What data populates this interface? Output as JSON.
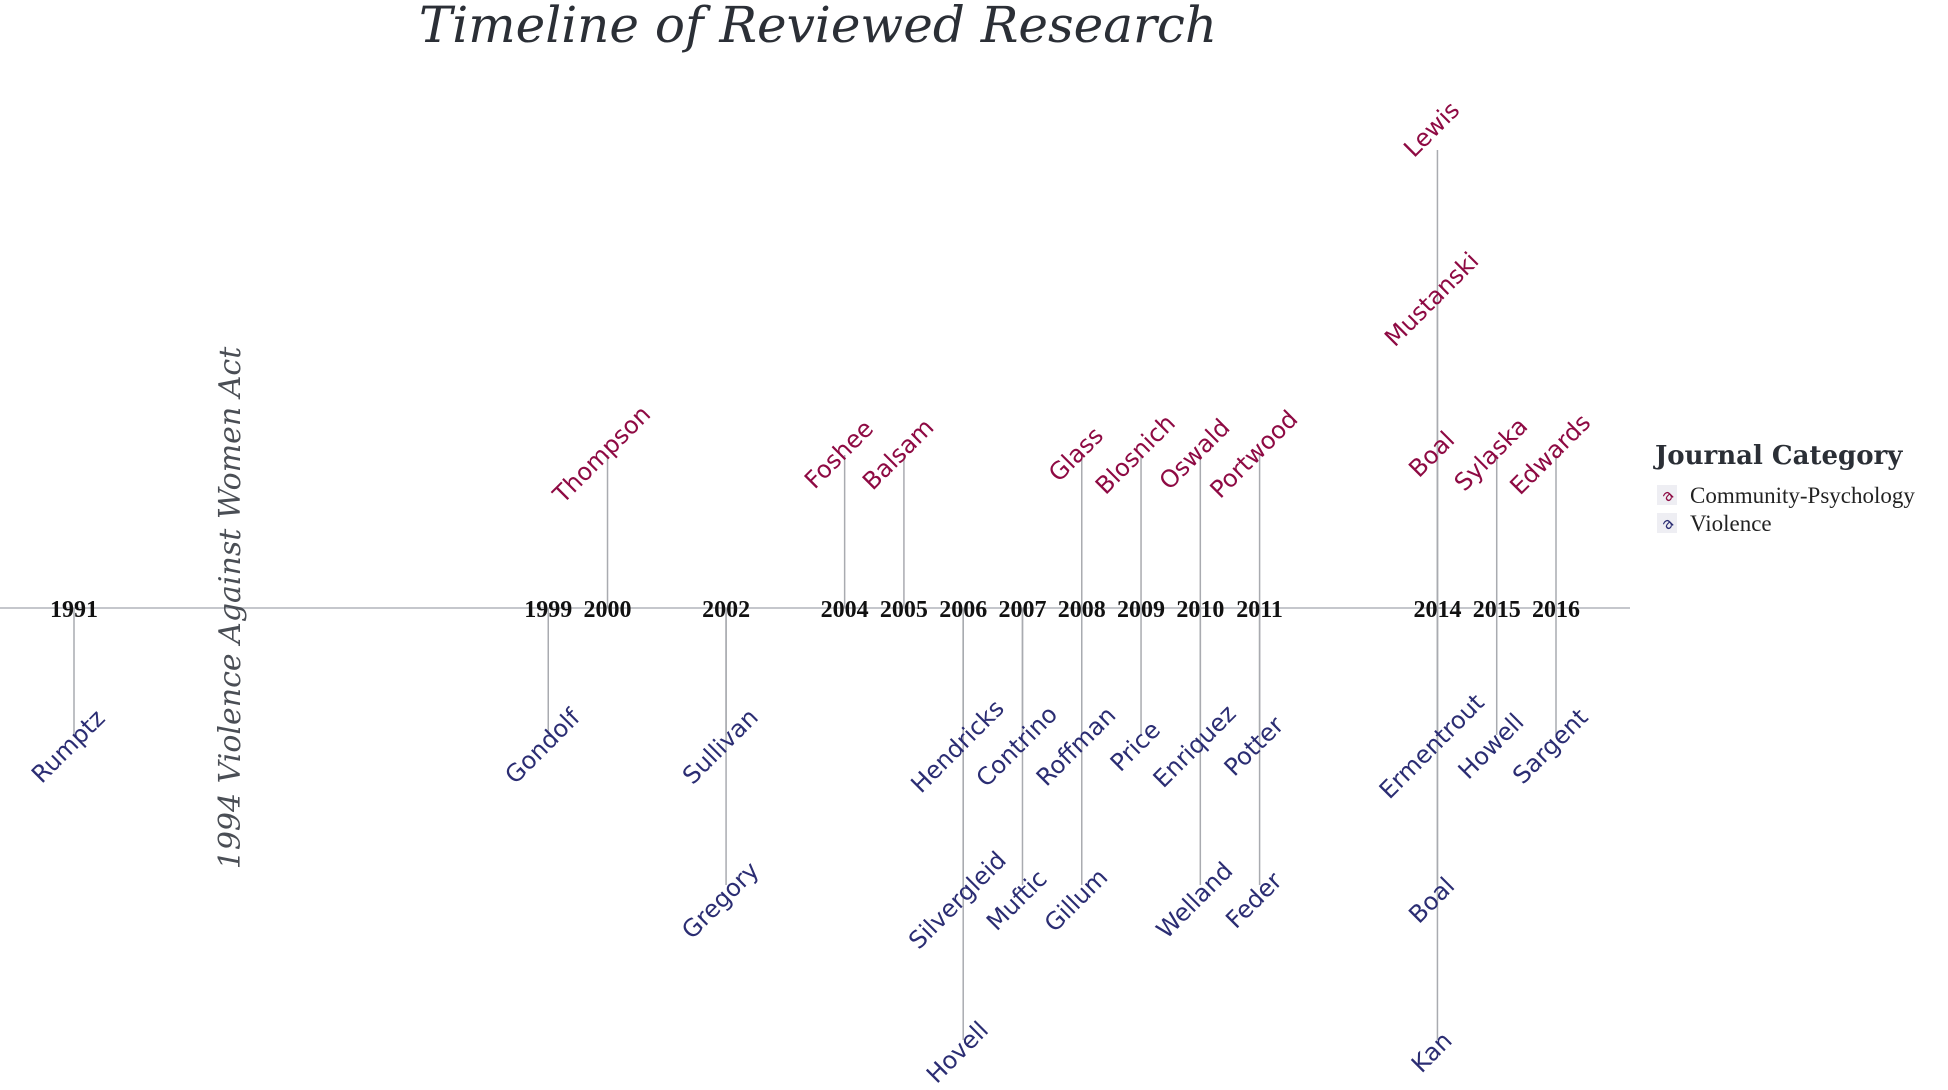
{
  "chart_data": {
    "type": "timeline",
    "title": "Timeline of Reviewed Research",
    "xlim": [
      1991,
      2016
    ],
    "event": {
      "year": 1994,
      "label": "1994 Violence Against Women Act"
    },
    "legend": {
      "title": "Journal Category",
      "placement": "right",
      "entries": [
        {
          "name": "Community-Psychology",
          "key": "a",
          "color": "#8e0a43"
        },
        {
          "name": "Violence",
          "key": "a",
          "color": "#2b2d73"
        }
      ]
    },
    "year_labels": [
      "1991",
      "1999",
      "2000",
      "2002",
      "2004",
      "2005",
      "2006",
      "2007",
      "2008",
      "2009",
      "2010",
      "2011",
      "2014",
      "2015",
      "2016"
    ],
    "studies": [
      {
        "author": "Rumptz",
        "year": 1991,
        "category": "Violence",
        "level": -1
      },
      {
        "author": "Gondolf",
        "year": 1999,
        "category": "Violence",
        "level": -1
      },
      {
        "author": "Thompson",
        "year": 2000,
        "category": "Community-Psychology",
        "level": 1
      },
      {
        "author": "Sullivan",
        "year": 2002,
        "category": "Violence",
        "level": -1
      },
      {
        "author": "Gregory",
        "year": 2002,
        "category": "Violence",
        "level": -2
      },
      {
        "author": "Foshee",
        "year": 2004,
        "category": "Community-Psychology",
        "level": 1
      },
      {
        "author": "Balsam",
        "year": 2005,
        "category": "Community-Psychology",
        "level": 1
      },
      {
        "author": "Hendricks",
        "year": 2006,
        "category": "Violence",
        "level": -1
      },
      {
        "author": "Silvergleid",
        "year": 2006,
        "category": "Violence",
        "level": -2
      },
      {
        "author": "Hovell",
        "year": 2006,
        "category": "Violence",
        "level": -3
      },
      {
        "author": "Contrino",
        "year": 2007,
        "category": "Violence",
        "level": -1
      },
      {
        "author": "Muftic",
        "year": 2007,
        "category": "Violence",
        "level": -2
      },
      {
        "author": "Glass",
        "year": 2008,
        "category": "Community-Psychology",
        "level": 1
      },
      {
        "author": "Roffman",
        "year": 2008,
        "category": "Violence",
        "level": -1
      },
      {
        "author": "Gillum",
        "year": 2008,
        "category": "Violence",
        "level": -2
      },
      {
        "author": "Blosnich",
        "year": 2009,
        "category": "Community-Psychology",
        "level": 1
      },
      {
        "author": "Price",
        "year": 2009,
        "category": "Violence",
        "level": -1
      },
      {
        "author": "Oswald",
        "year": 2010,
        "category": "Community-Psychology",
        "level": 1
      },
      {
        "author": "Enriquez",
        "year": 2010,
        "category": "Violence",
        "level": -1
      },
      {
        "author": "Welland",
        "year": 2010,
        "category": "Violence",
        "level": -2
      },
      {
        "author": "Portwood",
        "year": 2011,
        "category": "Community-Psychology",
        "level": 1
      },
      {
        "author": "Potter",
        "year": 2011,
        "category": "Violence",
        "level": -1
      },
      {
        "author": "Feder",
        "year": 2011,
        "category": "Violence",
        "level": -2
      },
      {
        "author": "Lewis",
        "year": 2014,
        "category": "Community-Psychology",
        "level": 3
      },
      {
        "author": "Mustanski",
        "year": 2014,
        "category": "Community-Psychology",
        "level": 2
      },
      {
        "author": "Boal",
        "year": 2014,
        "category": "Community-Psychology",
        "level": 1
      },
      {
        "author": "Ermentrout",
        "year": 2014,
        "category": "Violence",
        "level": -1
      },
      {
        "author": "Boal",
        "year": 2014,
        "category": "Violence",
        "level": -2
      },
      {
        "author": "Kan",
        "year": 2014,
        "category": "Violence",
        "level": -3
      },
      {
        "author": "Sylaska",
        "year": 2015,
        "category": "Community-Psychology",
        "level": 1
      },
      {
        "author": "Howell",
        "year": 2015,
        "category": "Violence",
        "level": -1
      },
      {
        "author": "Edwards",
        "year": 2016,
        "category": "Community-Psychology",
        "level": 1
      },
      {
        "author": "Sargent",
        "year": 2016,
        "category": "Violence",
        "level": -1
      }
    ]
  }
}
